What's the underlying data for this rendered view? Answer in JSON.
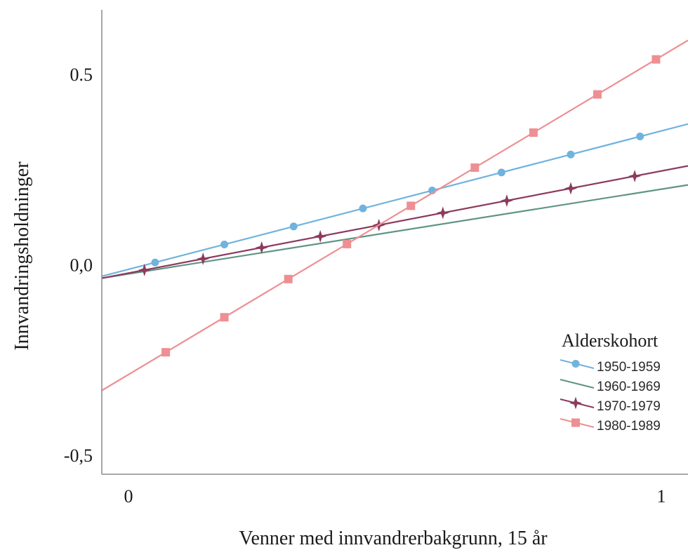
{
  "chart_data": {
    "type": "line",
    "xlabel": "Venner med innvandrerbakgrunn, 15 år",
    "ylabel": "Innvandringsholdninger",
    "xlim": [
      -0.05,
      1.05
    ],
    "ylim": [
      -0.55,
      0.67
    ],
    "x_ticks": [
      0,
      1
    ],
    "x_tick_labels": [
      "0",
      "1"
    ],
    "y_ticks": [
      0.5,
      0.0,
      -0.5
    ],
    "y_tick_labels": [
      "0.5",
      "0,0",
      "-0,5"
    ],
    "grid": false,
    "legend": {
      "title": "Alderskohort",
      "placement": "right"
    },
    "series": [
      {
        "name": "1950-1959",
        "color": "#6fb3de",
        "marker": "circle",
        "x": [
          -0.05,
          1.05
        ],
        "y": [
          -0.03,
          0.37
        ],
        "marker_x": [
          0.05,
          0.18,
          0.31,
          0.44,
          0.57,
          0.7,
          0.83,
          0.96
        ]
      },
      {
        "name": "1960-1969",
        "color": "#5e9484",
        "marker": "none",
        "x": [
          -0.05,
          1.05
        ],
        "y": [
          -0.035,
          0.21
        ],
        "marker_x": []
      },
      {
        "name": "1970-1979",
        "color": "#8c3a5e",
        "marker": "star",
        "x": [
          -0.05,
          1.05
        ],
        "y": [
          -0.035,
          0.26
        ],
        "marker_x": [
          0.03,
          0.14,
          0.25,
          0.36,
          0.47,
          0.59,
          0.71,
          0.83,
          0.95
        ]
      },
      {
        "name": "1980-1989",
        "color": "#ee8f93",
        "marker": "square",
        "x": [
          -0.05,
          1.05
        ],
        "y": [
          -0.33,
          0.59
        ],
        "marker_x": [
          0.07,
          0.18,
          0.3,
          0.41,
          0.53,
          0.65,
          0.76,
          0.88,
          0.99
        ]
      }
    ]
  }
}
